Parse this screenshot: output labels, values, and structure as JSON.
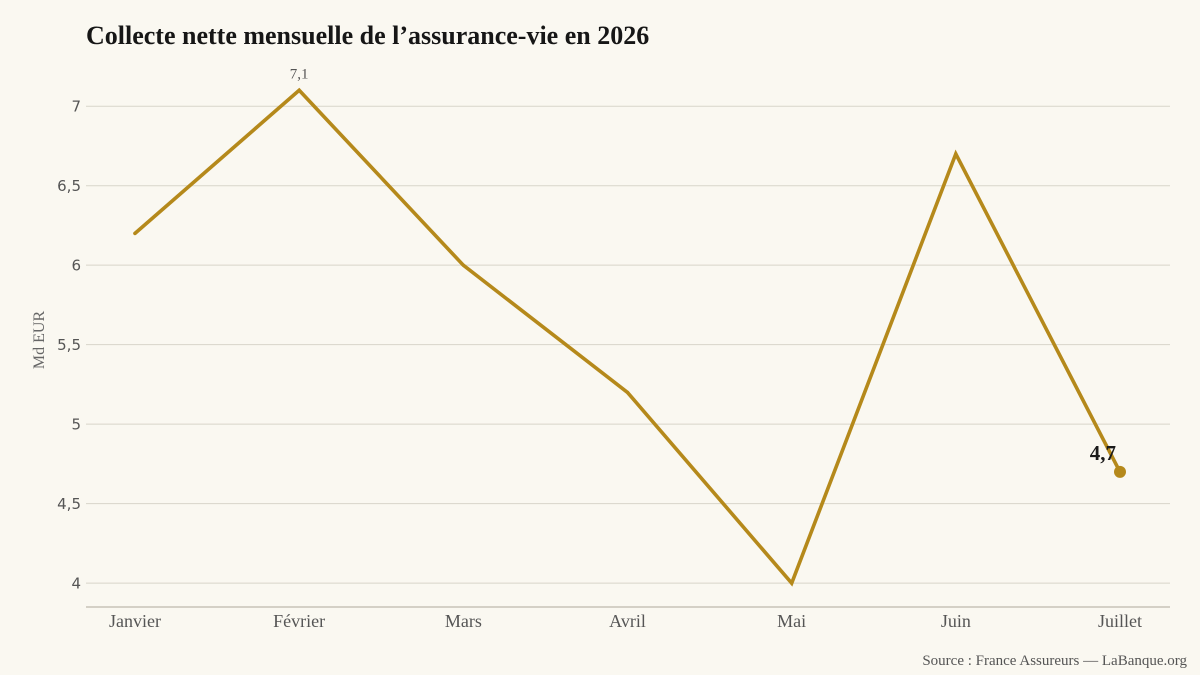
{
  "chart_data": {
    "type": "line",
    "title": "Collecte nette mensuelle de l’assurance-vie en 2026",
    "xlabel": "",
    "ylabel": "Md EUR",
    "categories": [
      "Janvier",
      "Février",
      "Mars",
      "Avril",
      "Mai",
      "Juin",
      "Juillet"
    ],
    "series": [
      {
        "values": [
          6.2,
          7.1,
          6.0,
          5.2,
          4.0,
          6.7,
          4.7
        ],
        "color": "#b5891b"
      }
    ],
    "yticks": [
      4,
      4.5,
      5,
      5.5,
      6,
      6.5,
      7
    ],
    "ytick_labels": [
      "4",
      "4,5",
      "5",
      "5,5",
      "6",
      "6,5",
      "7"
    ],
    "ylim": [
      3.85,
      7.3
    ],
    "grid": true,
    "annotations": [
      {
        "category": "Février",
        "text": "7,1",
        "highlight": false,
        "marker": false
      },
      {
        "category": "Juillet",
        "text": "4,7",
        "highlight": true,
        "marker": true
      }
    ]
  },
  "source": "Source : France Assureurs — LaBanque.org",
  "colors": {
    "background": "#faf8f1",
    "line": "#b5891b",
    "grid": "#d8d5ca",
    "axis": "#bdb9ac",
    "text": "#555555",
    "title": "#161616"
  }
}
